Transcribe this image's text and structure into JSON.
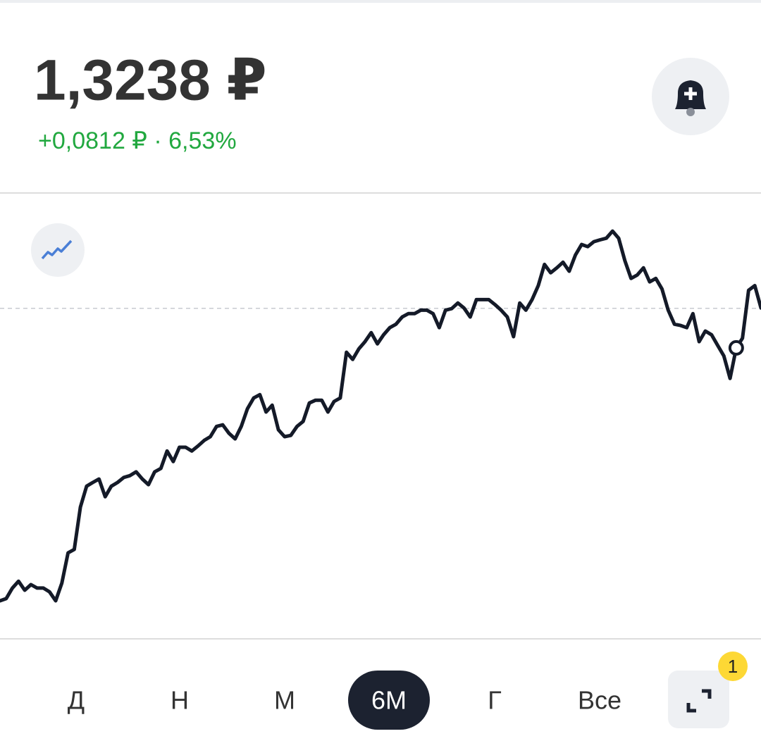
{
  "header": {
    "price": "1,3238 ₽",
    "change": "+0,0812 ₽ · 6,53%"
  },
  "chart_data": {
    "type": "line",
    "color": "#141a28",
    "values": [
      1.2426,
      1.2433,
      1.2467,
      1.2489,
      1.246,
      1.2478,
      1.2467,
      1.2467,
      1.2455,
      1.2426,
      1.2483,
      1.258,
      1.2591,
      1.2727,
      1.2794,
      1.2806,
      1.2817,
      1.276,
      1.2794,
      1.2806,
      1.2822,
      1.2828,
      1.284,
      1.2817,
      1.2799,
      1.284,
      1.2851,
      1.2907,
      1.2873,
      1.2919,
      1.2919,
      1.2907,
      1.2923,
      1.2941,
      1.2953,
      1.2986,
      1.2991,
      1.2964,
      1.2946,
      1.2986,
      1.3043,
      1.3077,
      1.3088,
      1.3032,
      1.3054,
      1.2975,
      1.2953,
      1.2957,
      1.2986,
      1.3002,
      1.3061,
      1.307,
      1.307,
      1.3032,
      1.3066,
      1.3077,
      1.3224,
      1.3201,
      1.3235,
      1.3258,
      1.3287,
      1.3251,
      1.328,
      1.3303,
      1.3314,
      1.3337,
      1.3348,
      1.3348,
      1.3359,
      1.3359,
      1.3348,
      1.3303,
      1.3359,
      1.3364,
      1.3382,
      1.3366,
      1.3337,
      1.3393,
      1.3393,
      1.3393,
      1.3377,
      1.3359,
      1.3337,
      1.3274,
      1.3382,
      1.3359,
      1.3393,
      1.3438,
      1.3506,
      1.3479,
      1.3495,
      1.3513,
      1.3484,
      1.3536,
      1.357,
      1.3563,
      1.3579,
      1.3585,
      1.359,
      1.3613,
      1.359,
      1.3518,
      1.3461,
      1.3472,
      1.3495,
      1.345,
      1.3461,
      1.3427,
      1.3359,
      1.3314,
      1.331,
      1.3303,
      1.3348,
      1.3258,
      1.3292,
      1.328,
      1.3246,
      1.3212,
      1.314,
      1.3238,
      1.3269,
      1.3423,
      1.3438,
      1.3366
    ],
    "ylim": [
      1.2304,
      1.3733
    ],
    "reference_line": 1.3365,
    "highlight_index": 119
  },
  "tabs": [
    "Д",
    "Н",
    "М",
    "6М",
    "Г",
    "Все"
  ],
  "selected_tab": 3,
  "badge": "1"
}
